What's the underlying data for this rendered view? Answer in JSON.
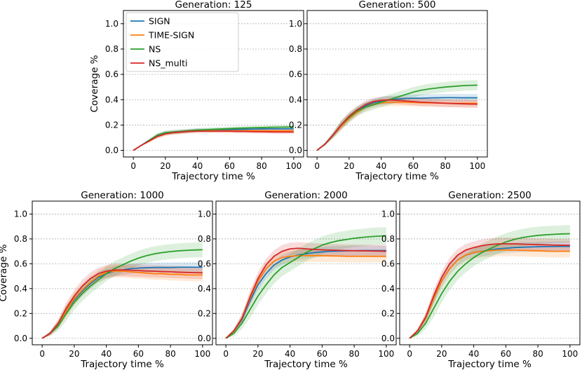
{
  "chart_data": [
    {
      "type": "line",
      "title": "Generation: 125",
      "xlabel": "Trajectory time %",
      "ylabel": "Coverage %",
      "xlim": [
        0,
        100
      ],
      "ylim": [
        0,
        1.0
      ],
      "xticks": [
        0,
        20,
        40,
        60,
        80,
        100
      ],
      "yticks": [
        0.0,
        0.2,
        0.4,
        0.6,
        0.8,
        1.0
      ],
      "grid": "y",
      "legend": "top-left",
      "x": [
        0,
        5,
        10,
        15,
        20,
        25,
        30,
        35,
        40,
        45,
        50,
        55,
        60,
        65,
        70,
        75,
        80,
        85,
        90,
        95,
        100
      ],
      "series": [
        {
          "name": "SIGN",
          "color": "#1f77b4",
          "band": 0.015,
          "values": [
            0.0,
            0.04,
            0.08,
            0.12,
            0.14,
            0.145,
            0.15,
            0.155,
            0.16,
            0.16,
            0.162,
            0.163,
            0.165,
            0.165,
            0.167,
            0.168,
            0.169,
            0.17,
            0.17,
            0.17,
            0.17
          ]
        },
        {
          "name": "TIME-SIGN",
          "color": "#ff7f0e",
          "band": 0.015,
          "values": [
            0.0,
            0.04,
            0.075,
            0.11,
            0.13,
            0.14,
            0.145,
            0.15,
            0.155,
            0.155,
            0.155,
            0.155,
            0.155,
            0.155,
            0.155,
            0.155,
            0.155,
            0.155,
            0.155,
            0.155,
            0.155
          ]
        },
        {
          "name": "NS",
          "color": "#2ca02c",
          "band": 0.015,
          "values": [
            0.0,
            0.04,
            0.08,
            0.12,
            0.14,
            0.145,
            0.15,
            0.155,
            0.16,
            0.163,
            0.166,
            0.169,
            0.172,
            0.175,
            0.177,
            0.179,
            0.18,
            0.182,
            0.183,
            0.184,
            0.185
          ]
        },
        {
          "name": "NS_multi",
          "color": "#d62728",
          "band": 0.015,
          "values": [
            0.0,
            0.04,
            0.075,
            0.11,
            0.13,
            0.14,
            0.145,
            0.15,
            0.152,
            0.152,
            0.152,
            0.152,
            0.152,
            0.15,
            0.15,
            0.148,
            0.147,
            0.146,
            0.145,
            0.145,
            0.145
          ]
        }
      ]
    },
    {
      "type": "line",
      "title": "Generation: 500",
      "xlabel": "Trajectory time %",
      "ylabel": "",
      "xlim": [
        0,
        100
      ],
      "ylim": [
        0,
        1.0
      ],
      "xticks": [
        0,
        20,
        40,
        60,
        80,
        100
      ],
      "yticks": [
        0.0,
        0.2,
        0.4,
        0.6,
        0.8,
        1.0
      ],
      "grid": "y",
      "x": [
        0,
        5,
        10,
        15,
        20,
        25,
        30,
        35,
        40,
        45,
        50,
        55,
        60,
        65,
        70,
        75,
        80,
        85,
        90,
        95,
        100
      ],
      "series": [
        {
          "name": "SIGN",
          "color": "#1f77b4",
          "band": 0.03,
          "values": [
            0.0,
            0.05,
            0.12,
            0.2,
            0.26,
            0.31,
            0.35,
            0.375,
            0.39,
            0.4,
            0.405,
            0.41,
            0.412,
            0.412,
            0.414,
            0.415,
            0.416,
            0.416,
            0.415,
            0.415,
            0.415
          ]
        },
        {
          "name": "TIME-SIGN",
          "color": "#ff7f0e",
          "band": 0.03,
          "values": [
            0.0,
            0.05,
            0.12,
            0.19,
            0.25,
            0.3,
            0.34,
            0.365,
            0.375,
            0.38,
            0.38,
            0.38,
            0.378,
            0.376,
            0.375,
            0.374,
            0.373,
            0.372,
            0.372,
            0.372,
            0.372
          ]
        },
        {
          "name": "NS",
          "color": "#2ca02c",
          "band": 0.04,
          "values": [
            0.0,
            0.05,
            0.12,
            0.2,
            0.26,
            0.31,
            0.34,
            0.36,
            0.38,
            0.4,
            0.42,
            0.44,
            0.46,
            0.475,
            0.485,
            0.493,
            0.5,
            0.505,
            0.51,
            0.513,
            0.515
          ]
        },
        {
          "name": "NS_multi",
          "color": "#d62728",
          "band": 0.03,
          "values": [
            0.0,
            0.05,
            0.12,
            0.2,
            0.27,
            0.32,
            0.36,
            0.385,
            0.395,
            0.398,
            0.395,
            0.39,
            0.385,
            0.38,
            0.378,
            0.375,
            0.372,
            0.37,
            0.368,
            0.366,
            0.365
          ]
        }
      ]
    },
    {
      "type": "line",
      "title": "Generation: 1000",
      "xlabel": "Trajectory time %",
      "ylabel": "Coverage %",
      "xlim": [
        0,
        100
      ],
      "ylim": [
        0,
        1.0
      ],
      "xticks": [
        0,
        20,
        40,
        60,
        80,
        100
      ],
      "yticks": [
        0.0,
        0.2,
        0.4,
        0.6,
        0.8,
        1.0
      ],
      "grid": "y",
      "x": [
        0,
        5,
        10,
        15,
        20,
        25,
        30,
        35,
        40,
        45,
        50,
        55,
        60,
        65,
        70,
        75,
        80,
        85,
        90,
        95,
        100
      ],
      "series": [
        {
          "name": "SIGN",
          "color": "#1f77b4",
          "band": 0.04,
          "values": [
            0.0,
            0.04,
            0.11,
            0.22,
            0.31,
            0.38,
            0.44,
            0.49,
            0.52,
            0.54,
            0.55,
            0.56,
            0.565,
            0.568,
            0.57,
            0.57,
            0.57,
            0.572,
            0.572,
            0.572,
            0.572
          ]
        },
        {
          "name": "TIME-SIGN",
          "color": "#ff7f0e",
          "band": 0.05,
          "values": [
            0.0,
            0.04,
            0.11,
            0.22,
            0.32,
            0.39,
            0.45,
            0.5,
            0.53,
            0.54,
            0.54,
            0.535,
            0.53,
            0.525,
            0.52,
            0.52,
            0.515,
            0.515,
            0.51,
            0.51,
            0.51
          ]
        },
        {
          "name": "NS",
          "color": "#2ca02c",
          "band": 0.06,
          "values": [
            0.0,
            0.04,
            0.1,
            0.2,
            0.29,
            0.36,
            0.42,
            0.47,
            0.52,
            0.56,
            0.59,
            0.62,
            0.645,
            0.665,
            0.68,
            0.69,
            0.698,
            0.704,
            0.708,
            0.711,
            0.713
          ]
        },
        {
          "name": "NS_multi",
          "color": "#d62728",
          "band": 0.05,
          "values": [
            0.0,
            0.04,
            0.12,
            0.24,
            0.34,
            0.42,
            0.48,
            0.52,
            0.54,
            0.55,
            0.55,
            0.548,
            0.545,
            0.542,
            0.54,
            0.537,
            0.535,
            0.532,
            0.53,
            0.528,
            0.527
          ]
        }
      ]
    },
    {
      "type": "line",
      "title": "Generation: 2000",
      "xlabel": "Trajectory time %",
      "ylabel": "",
      "xlim": [
        0,
        100
      ],
      "ylim": [
        0,
        1.0
      ],
      "xticks": [
        0,
        20,
        40,
        60,
        80,
        100
      ],
      "yticks": [
        0.0,
        0.2,
        0.4,
        0.6,
        0.8,
        1.0
      ],
      "grid": "y",
      "x": [
        0,
        5,
        10,
        15,
        20,
        25,
        30,
        35,
        40,
        45,
        50,
        55,
        60,
        65,
        70,
        75,
        80,
        85,
        90,
        95,
        100
      ],
      "series": [
        {
          "name": "SIGN",
          "color": "#1f77b4",
          "band": 0.04,
          "values": [
            0.0,
            0.06,
            0.15,
            0.3,
            0.43,
            0.52,
            0.59,
            0.63,
            0.655,
            0.67,
            0.68,
            0.69,
            0.695,
            0.7,
            0.702,
            0.704,
            0.705,
            0.706,
            0.706,
            0.706,
            0.706
          ]
        },
        {
          "name": "TIME-SIGN",
          "color": "#ff7f0e",
          "band": 0.05,
          "values": [
            0.0,
            0.06,
            0.16,
            0.32,
            0.46,
            0.56,
            0.62,
            0.65,
            0.66,
            0.665,
            0.665,
            0.665,
            0.665,
            0.663,
            0.662,
            0.66,
            0.66,
            0.66,
            0.66,
            0.66,
            0.66
          ]
        },
        {
          "name": "NS",
          "color": "#2ca02c",
          "band": 0.07,
          "values": [
            0.0,
            0.04,
            0.12,
            0.23,
            0.34,
            0.43,
            0.51,
            0.57,
            0.61,
            0.65,
            0.69,
            0.72,
            0.75,
            0.77,
            0.785,
            0.795,
            0.805,
            0.812,
            0.818,
            0.822,
            0.825
          ]
        },
        {
          "name": "NS_multi",
          "color": "#d62728",
          "band": 0.05,
          "values": [
            0.0,
            0.06,
            0.16,
            0.33,
            0.48,
            0.59,
            0.66,
            0.7,
            0.72,
            0.725,
            0.72,
            0.715,
            0.712,
            0.71,
            0.708,
            0.706,
            0.705,
            0.704,
            0.703,
            0.702,
            0.7
          ]
        }
      ]
    },
    {
      "type": "line",
      "title": "Generation: 2500",
      "xlabel": "Trajectory time %",
      "ylabel": "",
      "xlim": [
        0,
        100
      ],
      "ylim": [
        0,
        1.0
      ],
      "xticks": [
        0,
        20,
        40,
        60,
        80,
        100
      ],
      "yticks": [
        0.0,
        0.2,
        0.4,
        0.6,
        0.8,
        1.0
      ],
      "grid": "y",
      "x": [
        0,
        5,
        10,
        15,
        20,
        25,
        30,
        35,
        40,
        45,
        50,
        55,
        60,
        65,
        70,
        75,
        80,
        85,
        90,
        95,
        100
      ],
      "series": [
        {
          "name": "SIGN",
          "color": "#1f77b4",
          "band": 0.04,
          "values": [
            0.0,
            0.06,
            0.16,
            0.32,
            0.46,
            0.56,
            0.63,
            0.67,
            0.69,
            0.7,
            0.71,
            0.72,
            0.725,
            0.73,
            0.733,
            0.735,
            0.737,
            0.738,
            0.739,
            0.74,
            0.74
          ]
        },
        {
          "name": "TIME-SIGN",
          "color": "#ff7f0e",
          "band": 0.05,
          "values": [
            0.0,
            0.06,
            0.16,
            0.32,
            0.46,
            0.56,
            0.63,
            0.67,
            0.69,
            0.7,
            0.705,
            0.71,
            0.71,
            0.71,
            0.708,
            0.706,
            0.704,
            0.702,
            0.7,
            0.7,
            0.7
          ]
        },
        {
          "name": "NS",
          "color": "#2ca02c",
          "band": 0.07,
          "values": [
            0.0,
            0.04,
            0.12,
            0.24,
            0.36,
            0.46,
            0.54,
            0.6,
            0.65,
            0.69,
            0.72,
            0.75,
            0.775,
            0.795,
            0.81,
            0.82,
            0.828,
            0.833,
            0.837,
            0.84,
            0.842
          ]
        },
        {
          "name": "NS_multi",
          "color": "#d62728",
          "band": 0.05,
          "values": [
            0.0,
            0.06,
            0.17,
            0.34,
            0.49,
            0.6,
            0.67,
            0.71,
            0.73,
            0.745,
            0.755,
            0.76,
            0.76,
            0.76,
            0.758,
            0.756,
            0.754,
            0.752,
            0.75,
            0.749,
            0.748
          ]
        }
      ]
    }
  ]
}
